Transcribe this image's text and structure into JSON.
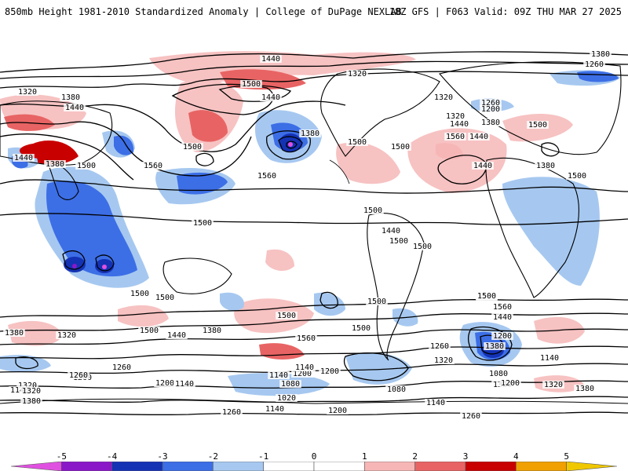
{
  "header": {
    "title_left": "850mb Height 1981-2010 Standardized Anomaly | College of DuPage NEXLAB",
    "title_right": "18Z GFS | F063 Valid: 09Z THU MAR 27 2025"
  },
  "colorbar": {
    "ticks": [
      "-5",
      "-4",
      "-3",
      "-2",
      "-1",
      "0",
      "1",
      "2",
      "3",
      "4",
      "5"
    ],
    "colors": [
      "#e050e0",
      "#8a18c8",
      "#1432b4",
      "#3c6ee6",
      "#a6c8f0",
      "#ffffff",
      "#ffffff",
      "#f7b6b6",
      "#e86464",
      "#c80000",
      "#f0a000",
      "#f0c800"
    ]
  },
  "contour_labels": [
    {
      "text": "1440"
    },
    {
      "text": "1380"
    },
    {
      "text": "1260"
    },
    {
      "text": "1320"
    },
    {
      "text": "1320"
    },
    {
      "text": "1380"
    },
    {
      "text": "1440"
    },
    {
      "text": "1500"
    },
    {
      "text": "1440"
    },
    {
      "text": "1320"
    },
    {
      "text": "1260"
    },
    {
      "text": "1200"
    },
    {
      "text": "1320"
    },
    {
      "text": "1380"
    },
    {
      "text": "1440"
    },
    {
      "text": "1500"
    },
    {
      "text": "1560"
    },
    {
      "text": "1440"
    },
    {
      "text": "1380"
    },
    {
      "text": "1500"
    },
    {
      "text": "1500"
    },
    {
      "text": "1500"
    },
    {
      "text": "1440"
    },
    {
      "text": "1380"
    },
    {
      "text": "1500"
    },
    {
      "text": "1560"
    },
    {
      "text": "1560"
    },
    {
      "text": "1440"
    },
    {
      "text": "1380"
    },
    {
      "text": "1500"
    },
    {
      "text": "1500"
    },
    {
      "text": "1500"
    },
    {
      "text": "1440"
    },
    {
      "text": "1500"
    },
    {
      "text": "1500"
    },
    {
      "text": "1500"
    },
    {
      "text": "1500"
    },
    {
      "text": "1500"
    },
    {
      "text": "1500"
    },
    {
      "text": "1560"
    },
    {
      "text": "1500"
    },
    {
      "text": "1500"
    },
    {
      "text": "1440"
    },
    {
      "text": "1380"
    },
    {
      "text": "1560"
    },
    {
      "text": "1500"
    },
    {
      "text": "1440"
    },
    {
      "text": "1380"
    },
    {
      "text": "1320"
    },
    {
      "text": "1200"
    },
    {
      "text": "1260"
    },
    {
      "text": "1380"
    },
    {
      "text": "1320"
    },
    {
      "text": "1260"
    },
    {
      "text": "1200"
    },
    {
      "text": "1140"
    },
    {
      "text": "1140"
    },
    {
      "text": "1200"
    },
    {
      "text": "1260"
    },
    {
      "text": "1320"
    },
    {
      "text": "1140"
    },
    {
      "text": "1140"
    },
    {
      "text": "1080"
    },
    {
      "text": "1080"
    },
    {
      "text": "1020"
    },
    {
      "text": "1140"
    },
    {
      "text": "1200"
    },
    {
      "text": "1260"
    },
    {
      "text": "1320"
    },
    {
      "text": "1260"
    },
    {
      "text": "1140"
    },
    {
      "text": "1200"
    },
    {
      "text": "1380"
    },
    {
      "text": "1320"
    },
    {
      "text": "1200"
    },
    {
      "text": "1140"
    },
    {
      "text": "1080"
    },
    {
      "text": "1260"
    },
    {
      "text": "1320"
    },
    {
      "text": "1380"
    },
    {
      "text": "1500"
    }
  ]
}
